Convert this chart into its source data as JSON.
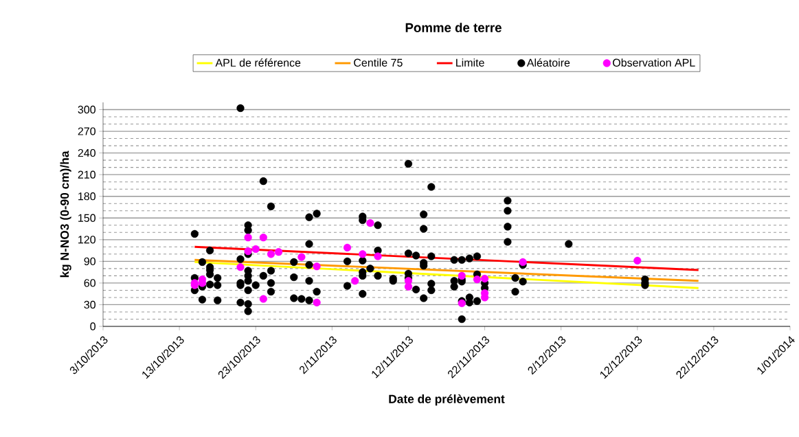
{
  "chart_data": {
    "type": "scatter",
    "title": "Pomme de terre",
    "xlabel": "Date de prélèvement",
    "ylabel": "kg N-NO3 (0-90 cm)/ha",
    "xlim": [
      "2013-10-03",
      "2014-01-01"
    ],
    "xticks": [
      {
        "value": "2013-10-03",
        "label": "3/10/2013"
      },
      {
        "value": "2013-10-13",
        "label": "13/10/2013"
      },
      {
        "value": "2013-10-23",
        "label": "23/10/2013"
      },
      {
        "value": "2013-11-02",
        "label": "2/11/2013"
      },
      {
        "value": "2013-11-12",
        "label": "12/11/2013"
      },
      {
        "value": "2013-11-22",
        "label": "22/11/2013"
      },
      {
        "value": "2013-12-02",
        "label": "2/12/2013"
      },
      {
        "value": "2013-12-12",
        "label": "12/12/2013"
      },
      {
        "value": "2013-12-22",
        "label": "22/12/2013"
      },
      {
        "value": "2014-01-01",
        "label": "1/01/2014"
      }
    ],
    "ylim": [
      0,
      310
    ],
    "yticks": [
      0,
      30,
      60,
      90,
      120,
      150,
      180,
      210,
      240,
      270,
      300
    ],
    "grid": "y",
    "legend": "top",
    "series": [
      {
        "name": "APL de référence",
        "type": "line",
        "marker": "none",
        "color": "#ffff00",
        "x": [
          "2013-10-15",
          "2013-12-20"
        ],
        "values": [
          89,
          53
        ]
      },
      {
        "name": "Centile 75",
        "type": "line",
        "marker": "none",
        "color": "#ff9900",
        "x": [
          "2013-10-15",
          "2013-12-20"
        ],
        "values": [
          92,
          63
        ]
      },
      {
        "name": "Limite",
        "type": "line",
        "marker": "none",
        "color": "#ff0000",
        "x": [
          "2013-10-15",
          "2013-12-20"
        ],
        "values": [
          110,
          78
        ]
      },
      {
        "name": "Aléatoire",
        "marker": "circle",
        "color": "#000000",
        "x": [
          "2013-10-15",
          "2013-10-15",
          "2013-10-15",
          "2013-10-16",
          "2013-10-16",
          "2013-10-16",
          "2013-10-17",
          "2013-10-17",
          "2013-10-17",
          "2013-10-17",
          "2013-10-17",
          "2013-10-18",
          "2013-10-18",
          "2013-10-18",
          "2013-10-21",
          "2013-10-21",
          "2013-10-21",
          "2013-10-21",
          "2013-10-21",
          "2013-10-22",
          "2013-10-22",
          "2013-10-22",
          "2013-10-22",
          "2013-10-22",
          "2013-10-22",
          "2013-10-22",
          "2013-10-22",
          "2013-10-22",
          "2013-10-23",
          "2013-10-24",
          "2013-10-24",
          "2013-10-25",
          "2013-10-25",
          "2013-10-25",
          "2013-10-25",
          "2013-10-28",
          "2013-10-28",
          "2013-10-28",
          "2013-10-29",
          "2013-10-30",
          "2013-10-30",
          "2013-10-30",
          "2013-10-30",
          "2013-10-30",
          "2013-10-31",
          "2013-10-31",
          "2013-11-04",
          "2013-11-04",
          "2013-11-06",
          "2013-11-06",
          "2013-11-06",
          "2013-11-06",
          "2013-11-06",
          "2013-11-06",
          "2013-11-07",
          "2013-11-08",
          "2013-11-08",
          "2013-11-08",
          "2013-11-10",
          "2013-11-10",
          "2013-11-12",
          "2013-11-12",
          "2013-11-12",
          "2013-11-12",
          "2013-11-13",
          "2013-11-13",
          "2013-11-14",
          "2013-11-14",
          "2013-11-14",
          "2013-11-14",
          "2013-11-14",
          "2013-11-15",
          "2013-11-15",
          "2013-11-15",
          "2013-11-15",
          "2013-11-18",
          "2013-11-18",
          "2013-11-18",
          "2013-11-19",
          "2013-11-19",
          "2013-11-19",
          "2013-11-19",
          "2013-11-19",
          "2013-11-20",
          "2013-11-20",
          "2013-11-20",
          "2013-11-21",
          "2013-11-21",
          "2013-11-21",
          "2013-11-22",
          "2013-11-22",
          "2013-11-25",
          "2013-11-25",
          "2013-11-25",
          "2013-11-25",
          "2013-11-26",
          "2013-11-26",
          "2013-11-27",
          "2013-11-27",
          "2013-12-03",
          "2013-12-13",
          "2013-12-13",
          "2013-12-13"
        ],
        "values": [
          128,
          67,
          50,
          89,
          37,
          55,
          105,
          82,
          78,
          72,
          58,
          67,
          57,
          36,
          302,
          93,
          60,
          57,
          33,
          140,
          133,
          100,
          77,
          70,
          63,
          50,
          31,
          21,
          57,
          201,
          70,
          166,
          77,
          60,
          48,
          89,
          68,
          39,
          38,
          151,
          114,
          85,
          63,
          36,
          156,
          48,
          90,
          56,
          152,
          147,
          91,
          75,
          70,
          45,
          80,
          140,
          105,
          70,
          66,
          63,
          225,
          101,
          73,
          67,
          98,
          51,
          155,
          135,
          88,
          84,
          39,
          193,
          97,
          59,
          50,
          92,
          63,
          55,
          92,
          65,
          62,
          35,
          10,
          94,
          40,
          33,
          97,
          72,
          35,
          60,
          53,
          174,
          160,
          138,
          117,
          67,
          48,
          85,
          62,
          114,
          65,
          60,
          57
        ]
      },
      {
        "name": "Observation APL",
        "marker": "circle",
        "color": "#ff00ff",
        "x": [
          "2013-10-15",
          "2013-10-15",
          "2013-10-16",
          "2013-10-16",
          "2013-10-21",
          "2013-10-22",
          "2013-10-22",
          "2013-10-23",
          "2013-10-24",
          "2013-10-24",
          "2013-10-25",
          "2013-10-26",
          "2013-10-29",
          "2013-10-31",
          "2013-10-31",
          "2013-11-04",
          "2013-11-05",
          "2013-11-06",
          "2013-11-07",
          "2013-11-08",
          "2013-11-12",
          "2013-11-12",
          "2013-11-19",
          "2013-11-19",
          "2013-11-21",
          "2013-11-22",
          "2013-11-22",
          "2013-11-22",
          "2013-11-27",
          "2013-12-12"
        ],
        "values": [
          57,
          60,
          60,
          65,
          82,
          123,
          104,
          107,
          123,
          38,
          100,
          103,
          96,
          83,
          33,
          109,
          63,
          100,
          143,
          97,
          63,
          55,
          70,
          32,
          65,
          66,
          46,
          40,
          89,
          91
        ]
      }
    ]
  }
}
